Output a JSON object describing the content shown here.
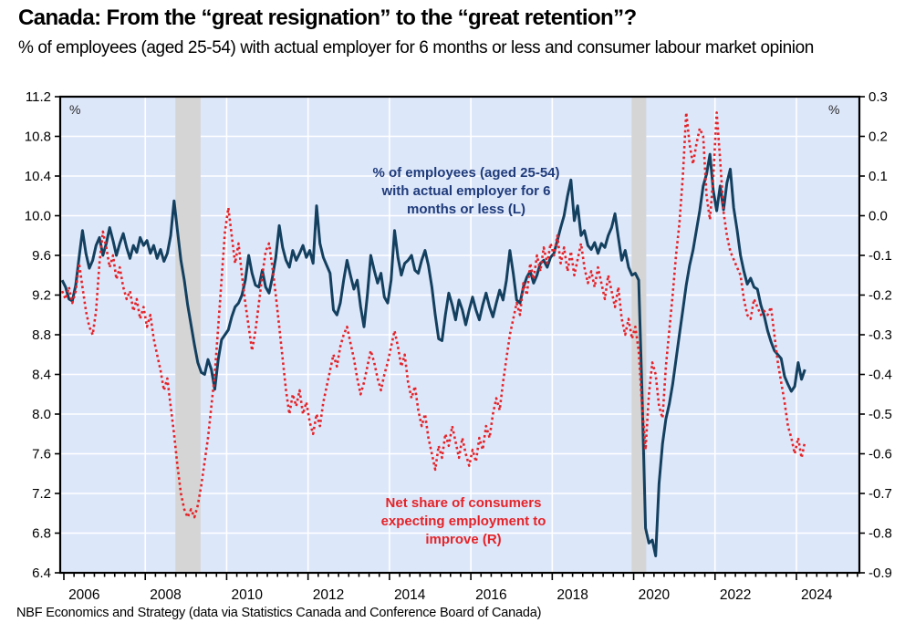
{
  "page": {
    "title": "Canada: From the “great resignation” to the “great retention”?",
    "subtitle": "% of employees (aged 25-54) with actual employer for 6 months or less and consumer labour market opinion",
    "footer": "NBF Economics and Strategy (data via Statistics Canada and Conference Board of Canada)"
  },
  "colors": {
    "plot_bg": "#dde7fa",
    "recession_band": "#d5d5d5",
    "gridline": "#ffffff",
    "axis": "#000000",
    "employees_line": "#14405f",
    "consumers_line": "#e42328",
    "annotation_navy": "#1f3b7a"
  },
  "chart_data": {
    "type": "line",
    "title": "Canada: From the “great resignation” to the “great retention”?",
    "subtitle": "% of employees (aged 25-54) with actual employer for 6 months or less and consumer labour market opinion",
    "x_start": "2005-12",
    "x_frequency": "monthly",
    "x_axis": {
      "year_labels": [
        "2006",
        "2008",
        "2010",
        "2012",
        "2014",
        "2016",
        "2018",
        "2020",
        "2022",
        "2024"
      ],
      "minor_tick_interval_months": 3,
      "major_tick_interval_years": 2,
      "range_years": [
        2005.92,
        2025.5
      ]
    },
    "left_axis": {
      "label": "%",
      "min": 6.4,
      "max": 11.2,
      "step": 0.4,
      "ticks": [
        "11.2",
        "10.8",
        "10.4",
        "10.0",
        "9.6",
        "9.2",
        "8.8",
        "8.4",
        "8.0",
        "7.6",
        "7.2",
        "6.8",
        "6.4"
      ]
    },
    "right_axis": {
      "label": "%",
      "min": -0.9,
      "max": 0.3,
      "step": 0.1,
      "ticks": [
        "0.3",
        "0.2",
        "0.1",
        "0.0",
        "-0.1",
        "-0.2",
        "-0.3",
        "-0.4",
        "-0.5",
        "-0.6",
        "-0.7",
        "-0.8",
        "-0.9"
      ]
    },
    "grid": {
      "horizontal": true,
      "vertical": true
    },
    "recession_bands": [
      {
        "from": 2008.74,
        "to": 2009.36
      },
      {
        "from": 2019.95,
        "to": 2020.31
      }
    ],
    "series": [
      {
        "id": "employees-6mo-line",
        "name": "% of employees (aged 25-54) with actual employer for 6 months or less (L)",
        "axis": "left",
        "style": "solid",
        "color": "#14405f",
        "values": [
          9.35,
          9.28,
          9.16,
          9.14,
          9.3,
          9.58,
          9.85,
          9.62,
          9.47,
          9.55,
          9.7,
          9.78,
          9.6,
          9.72,
          9.88,
          9.75,
          9.6,
          9.72,
          9.82,
          9.68,
          9.57,
          9.7,
          9.63,
          9.78,
          9.7,
          9.75,
          9.62,
          9.7,
          9.57,
          9.66,
          9.54,
          9.62,
          9.8,
          10.15,
          9.85,
          9.55,
          9.35,
          9.1,
          8.9,
          8.7,
          8.52,
          8.42,
          8.4,
          8.55,
          8.45,
          8.25,
          8.55,
          8.75,
          8.8,
          8.85,
          8.98,
          9.08,
          9.12,
          9.2,
          9.35,
          9.6,
          9.42,
          9.3,
          9.28,
          9.45,
          9.28,
          9.22,
          9.38,
          9.58,
          9.9,
          9.68,
          9.55,
          9.48,
          9.65,
          9.55,
          9.62,
          9.7,
          9.58,
          9.65,
          9.52,
          10.1,
          9.72,
          9.58,
          9.5,
          9.42,
          9.05,
          9.0,
          9.12,
          9.35,
          9.55,
          9.4,
          9.26,
          9.35,
          9.08,
          8.88,
          9.2,
          9.6,
          9.45,
          9.32,
          9.42,
          9.18,
          9.12,
          9.35,
          9.85,
          9.58,
          9.4,
          9.52,
          9.55,
          9.6,
          9.45,
          9.42,
          9.55,
          9.65,
          9.5,
          9.28,
          9.0,
          8.76,
          8.74,
          9.0,
          9.22,
          9.1,
          8.95,
          9.15,
          9.05,
          8.9,
          9.05,
          9.18,
          9.05,
          8.95,
          9.1,
          9.22,
          9.08,
          8.98,
          9.12,
          9.25,
          9.15,
          9.35,
          9.65,
          9.42,
          9.15,
          9.12,
          9.28,
          9.38,
          9.44,
          9.32,
          9.4,
          9.52,
          9.55,
          9.48,
          9.58,
          9.62,
          9.75,
          9.88,
          10.0,
          10.2,
          10.36,
          9.95,
          10.1,
          9.8,
          9.85,
          9.7,
          9.66,
          9.73,
          9.62,
          9.72,
          9.68,
          9.8,
          9.88,
          10.02,
          9.78,
          9.55,
          9.65,
          9.48,
          9.4,
          9.42,
          9.35,
          8.2,
          6.85,
          6.7,
          6.73,
          6.57,
          7.3,
          7.7,
          7.95,
          8.1,
          8.3,
          8.55,
          8.8,
          9.05,
          9.3,
          9.5,
          9.65,
          9.85,
          10.05,
          10.3,
          10.42,
          10.62,
          10.25,
          10.05,
          10.3,
          10.06,
          10.33,
          10.47,
          10.08,
          9.86,
          9.6,
          9.44,
          9.31,
          9.37,
          9.28,
          9.26,
          9.1,
          8.99,
          8.84,
          8.73,
          8.64,
          8.6,
          8.56,
          8.38,
          8.3,
          8.23,
          8.28,
          8.52,
          8.35,
          8.45
        ]
      },
      {
        "id": "consumer-expectations-line",
        "name": "Net share of consumers expecting employment to improve (R)",
        "axis": "right",
        "style": "dotted",
        "color": "#e42328",
        "values": [
          -0.19,
          -0.21,
          -0.18,
          -0.22,
          -0.19,
          -0.12,
          -0.18,
          -0.24,
          -0.28,
          -0.3,
          -0.24,
          -0.12,
          -0.04,
          -0.08,
          -0.13,
          -0.1,
          -0.16,
          -0.13,
          -0.18,
          -0.21,
          -0.19,
          -0.24,
          -0.21,
          -0.26,
          -0.23,
          -0.28,
          -0.25,
          -0.31,
          -0.35,
          -0.39,
          -0.44,
          -0.41,
          -0.48,
          -0.55,
          -0.63,
          -0.7,
          -0.74,
          -0.76,
          -0.74,
          -0.76,
          -0.73,
          -0.68,
          -0.62,
          -0.56,
          -0.48,
          -0.4,
          -0.28,
          -0.16,
          -0.04,
          0.02,
          -0.05,
          -0.12,
          -0.07,
          -0.15,
          -0.22,
          -0.28,
          -0.34,
          -0.29,
          -0.22,
          -0.15,
          -0.09,
          -0.07,
          -0.13,
          -0.2,
          -0.28,
          -0.36,
          -0.44,
          -0.5,
          -0.45,
          -0.48,
          -0.44,
          -0.5,
          -0.47,
          -0.52,
          -0.55,
          -0.5,
          -0.53,
          -0.47,
          -0.43,
          -0.39,
          -0.35,
          -0.38,
          -0.33,
          -0.3,
          -0.28,
          -0.32,
          -0.36,
          -0.41,
          -0.45,
          -0.42,
          -0.38,
          -0.34,
          -0.37,
          -0.41,
          -0.44,
          -0.4,
          -0.37,
          -0.33,
          -0.29,
          -0.33,
          -0.38,
          -0.35,
          -0.42,
          -0.46,
          -0.43,
          -0.49,
          -0.53,
          -0.5,
          -0.56,
          -0.6,
          -0.64,
          -0.58,
          -0.61,
          -0.55,
          -0.58,
          -0.53,
          -0.57,
          -0.61,
          -0.56,
          -0.6,
          -0.63,
          -0.59,
          -0.62,
          -0.56,
          -0.59,
          -0.53,
          -0.56,
          -0.5,
          -0.46,
          -0.49,
          -0.42,
          -0.36,
          -0.3,
          -0.26,
          -0.22,
          -0.25,
          -0.17,
          -0.2,
          -0.12,
          -0.16,
          -0.1,
          -0.14,
          -0.08,
          -0.12,
          -0.07,
          -0.1,
          -0.05,
          -0.12,
          -0.08,
          -0.14,
          -0.09,
          -0.15,
          -0.11,
          -0.07,
          -0.13,
          -0.17,
          -0.14,
          -0.18,
          -0.13,
          -0.17,
          -0.21,
          -0.15,
          -0.19,
          -0.23,
          -0.18,
          -0.26,
          -0.3,
          -0.26,
          -0.31,
          -0.28,
          -0.34,
          -0.48,
          -0.59,
          -0.45,
          -0.37,
          -0.4,
          -0.48,
          -0.51,
          -0.38,
          -0.29,
          -0.2,
          -0.1,
          -0.02,
          0.1,
          0.26,
          0.18,
          0.13,
          0.18,
          0.22,
          0.2,
          0.05,
          -0.01,
          0.1,
          0.26,
          0.14,
          0.01,
          -0.05,
          -0.09,
          -0.11,
          -0.13,
          -0.15,
          -0.21,
          -0.25,
          -0.26,
          -0.21,
          -0.23,
          -0.25,
          -0.24,
          -0.25,
          -0.23,
          -0.3,
          -0.37,
          -0.42,
          -0.47,
          -0.53,
          -0.56,
          -0.6,
          -0.56,
          -0.61,
          -0.57
        ]
      }
    ],
    "annotations": [
      {
        "id": "employees-series-annotation",
        "text": "% of employees (aged 25-54)\nwith actual employer for 6\nmonths or less (L)",
        "color": "#1f3b7a"
      },
      {
        "id": "consumers-series-annotation",
        "text": "Net share of consumers\nexpecting employment to\nimprove (R)",
        "color": "#e42328"
      }
    ],
    "legend_position": "none"
  }
}
